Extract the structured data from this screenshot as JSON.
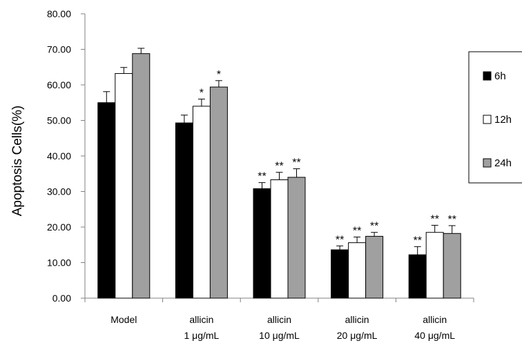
{
  "chart_data": {
    "type": "bar",
    "ylabel": "Apoptosis Cells(%)",
    "ylim": [
      0,
      80
    ],
    "yticks": [
      "0.00",
      "10.00",
      "20.00",
      "30.00",
      "40.00",
      "50.00",
      "60.00",
      "70.00",
      "80.00"
    ],
    "categories": [
      {
        "line1": "Model",
        "line2": ""
      },
      {
        "line1": "allicin",
        "line2": "1 μg/mL"
      },
      {
        "line1": "allicin",
        "line2": "10 μg/mL"
      },
      {
        "line1": "allicin",
        "line2": "20 μg/mL"
      },
      {
        "line1": "allicin",
        "line2": "40 μg/mL"
      }
    ],
    "series": [
      {
        "name": "6h",
        "color": "#000000",
        "values": [
          55.0,
          49.3,
          30.8,
          13.6,
          12.2
        ],
        "errors": [
          3.1,
          2.2,
          1.7,
          1.1,
          2.3
        ],
        "significance": [
          "",
          "",
          "**",
          "**",
          "**"
        ]
      },
      {
        "name": "12h",
        "color": "#ffffff",
        "values": [
          63.2,
          54.0,
          33.3,
          15.6,
          18.5
        ],
        "errors": [
          1.7,
          2.0,
          2.1,
          1.6,
          2.0
        ],
        "significance": [
          "",
          "*",
          "**",
          "**",
          "**"
        ]
      },
      {
        "name": "24h",
        "color": "#a0a0a0",
        "values": [
          68.8,
          59.4,
          34.0,
          17.4,
          18.2
        ],
        "errors": [
          1.5,
          1.8,
          2.4,
          1.1,
          2.2
        ],
        "significance": [
          "",
          "*",
          "**",
          "**",
          "**"
        ]
      }
    ],
    "legend": "right",
    "grid": false
  }
}
